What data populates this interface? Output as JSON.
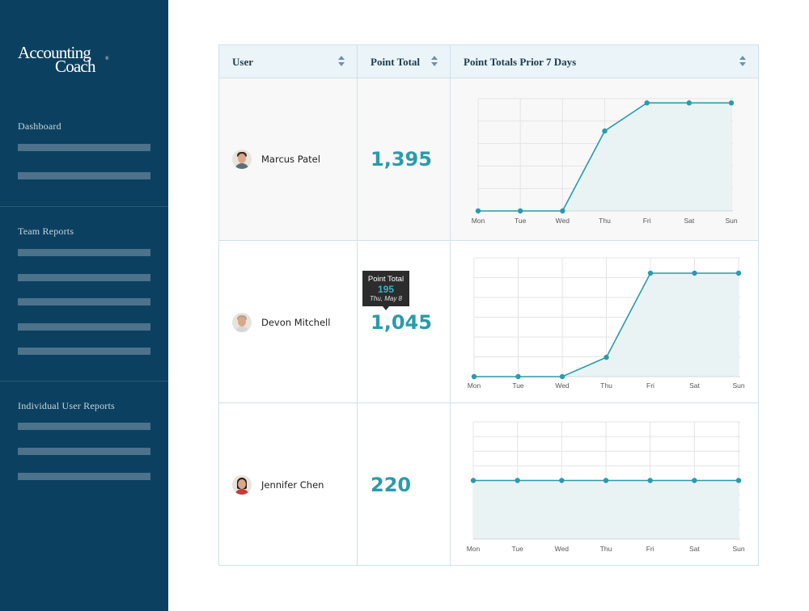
{
  "brand": {
    "line1": "Accounting",
    "line2": "Coach",
    "mark": "®"
  },
  "sidebar": {
    "sections": [
      {
        "title": "Dashboard",
        "item_count": 2
      },
      {
        "title": "Team Reports",
        "item_count": 5
      },
      {
        "title": "Individual User Reports",
        "item_count": 3
      }
    ]
  },
  "table": {
    "columns": [
      {
        "label": "User"
      },
      {
        "label": "Point Total"
      },
      {
        "label": "Point Totals Prior 7 Days"
      }
    ],
    "rows": [
      {
        "name": "Marcus Patel",
        "points": "1,395",
        "avatar": "user-avatar-icon"
      },
      {
        "name": "Devon Mitchell",
        "points": "1,045",
        "avatar": "user-avatar-icon"
      },
      {
        "name": "Jennifer Chen",
        "points": "220",
        "avatar": "user-avatar-icon"
      }
    ]
  },
  "tooltip": {
    "label": "Point Total",
    "value": "195",
    "date": "Thu, May 8"
  },
  "chart_data": [
    {
      "type": "area",
      "x": [
        "Mon",
        "Tue",
        "Wed",
        "Thu",
        "Fri",
        "Sat",
        "Sun"
      ],
      "values": [
        0,
        0,
        0,
        185,
        250,
        250,
        250
      ],
      "ylim": [
        0,
        260
      ]
    },
    {
      "type": "area",
      "x": [
        "Mon",
        "Tue",
        "Wed",
        "Thu",
        "Fri",
        "Sat",
        "Sun"
      ],
      "values": [
        0,
        0,
        0,
        195,
        1045,
        1045,
        1045
      ],
      "ylim": [
        0,
        1200
      ]
    },
    {
      "type": "area",
      "x": [
        "Mon",
        "Tue",
        "Wed",
        "Thu",
        "Fri",
        "Sat",
        "Sun"
      ],
      "values": [
        220,
        220,
        220,
        220,
        220,
        220,
        220
      ],
      "ylim": [
        0,
        440
      ]
    }
  ],
  "colors": {
    "sidebar": "#0c4060",
    "accent": "#2a9bab",
    "area": "#e9f3f4",
    "grid": "#e4e4e4"
  }
}
